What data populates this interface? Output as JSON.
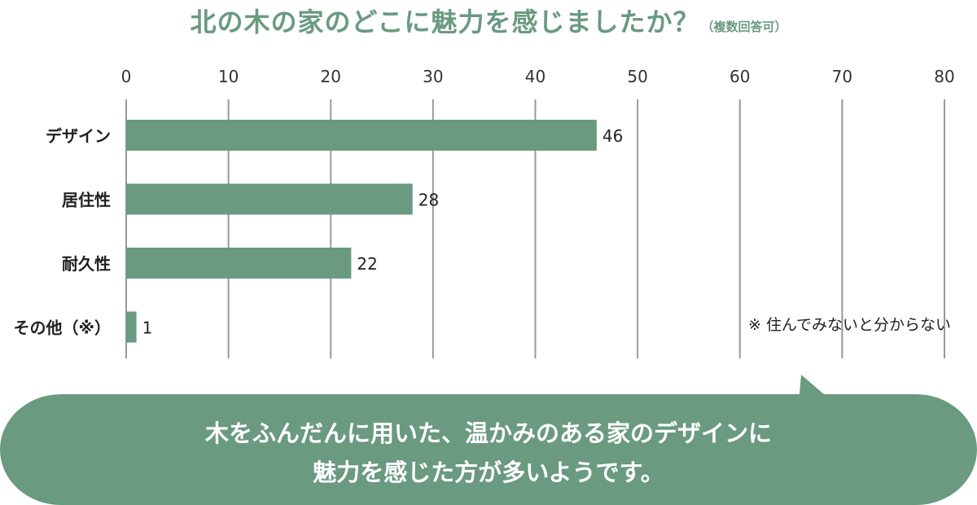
{
  "title": "北の木の家のどこに魅力を感じましたか？",
  "title_note": "（複数回答可）",
  "colors": {
    "bar": "#6a9a80",
    "title": "#6a9a80",
    "bubble": "#6a9a80",
    "grid": "#999999",
    "text": "#222222"
  },
  "chart_data": {
    "type": "bar",
    "orientation": "horizontal",
    "categories": [
      "デザイン",
      "居住性",
      "耐久性",
      "その他（※）"
    ],
    "values": [
      46,
      28,
      22,
      1
    ],
    "x_ticks": [
      "0",
      "10",
      "20",
      "30",
      "40",
      "50",
      "60",
      "70",
      "80"
    ],
    "xlim": [
      0,
      80
    ],
    "x_axis_position": "top",
    "grid": true,
    "annotation": "※ 住んでみないと分からない"
  },
  "comment": {
    "line1": "木をふんだんに用いた、温かみのある家のデザインに",
    "line2": "魅力を感じた方が多いようです。"
  }
}
